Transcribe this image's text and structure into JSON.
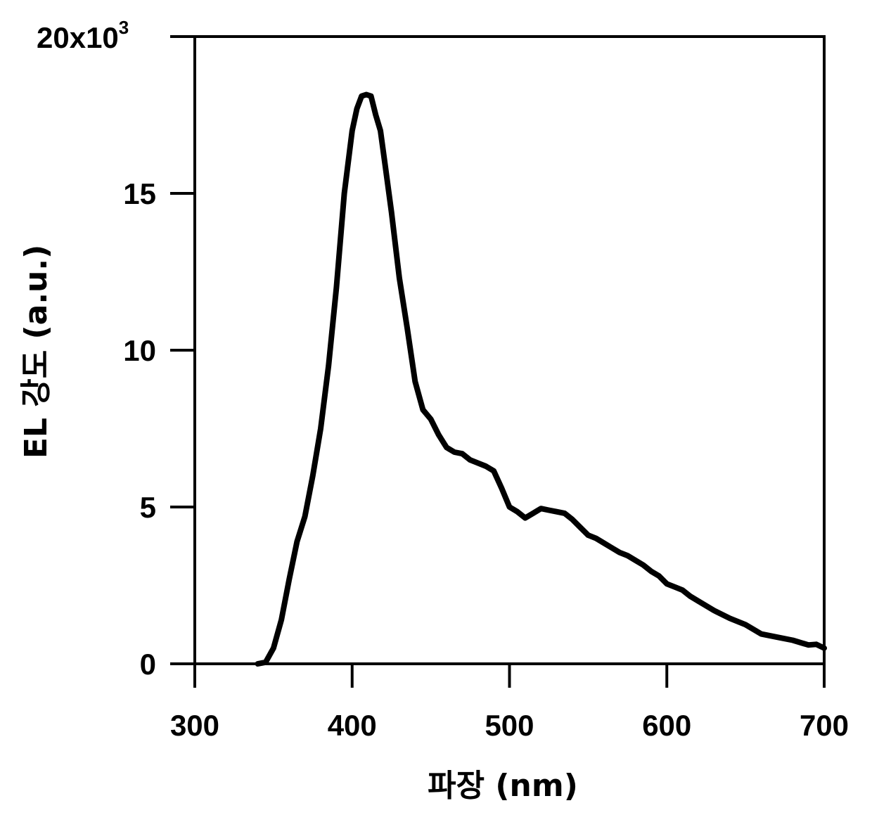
{
  "chart_data": {
    "type": "line",
    "xlabel": "파장 (nm)",
    "ylabel": "EL 강도 (a.u.)",
    "xlim": [
      300,
      700
    ],
    "ylim": [
      0,
      20000
    ],
    "x_ticks": [
      "300",
      "400",
      "500",
      "600",
      "700"
    ],
    "y_ticks": [
      "0",
      "5",
      "10",
      "15"
    ],
    "y_top_tick": {
      "base": "20x10",
      "exponent": "3"
    },
    "grid": false,
    "line_color": "#000000",
    "series": [
      {
        "x": [
          340,
          345,
          350,
          355,
          360,
          365,
          370,
          375,
          380,
          385,
          390,
          395,
          400,
          403,
          406,
          409,
          412,
          415,
          418,
          421,
          425,
          430,
          435,
          440,
          445,
          450,
          455,
          460,
          465,
          470,
          475,
          480,
          485,
          490,
          495,
          500,
          505,
          510,
          515,
          520,
          525,
          530,
          535,
          540,
          545,
          550,
          555,
          560,
          565,
          570,
          575,
          580,
          585,
          590,
          595,
          600,
          605,
          610,
          615,
          620,
          630,
          640,
          650,
          660,
          670,
          680,
          690,
          695,
          700
        ],
        "y": [
          0,
          50,
          500,
          1400,
          2700,
          3900,
          4700,
          6000,
          7500,
          9500,
          12000,
          15000,
          17000,
          17700,
          18100,
          18150,
          18100,
          17500,
          17000,
          15900,
          14400,
          12300,
          10700,
          9000,
          8100,
          7800,
          7300,
          6900,
          6750,
          6700,
          6500,
          6400,
          6300,
          6150,
          5600,
          5000,
          4850,
          4650,
          4800,
          4950,
          4900,
          4850,
          4800,
          4600,
          4350,
          4100,
          4000,
          3850,
          3700,
          3550,
          3450,
          3300,
          3150,
          2950,
          2800,
          2550,
          2450,
          2350,
          2150,
          2000,
          1700,
          1450,
          1250,
          950,
          850,
          750,
          600,
          620,
          500
        ]
      }
    ]
  }
}
